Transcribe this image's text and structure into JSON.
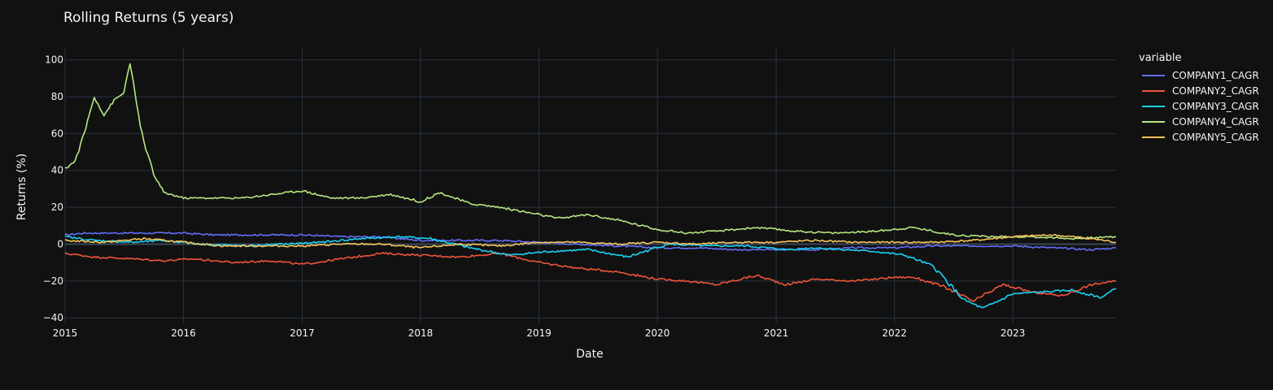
{
  "chart_data": {
    "type": "line",
    "title": "Rolling Returns (5 years)",
    "xlabel": "Date",
    "ylabel": "Returns (%)",
    "legend_title": "variable",
    "legend_position": "right",
    "grid": true,
    "xlim": [
      "2015-01-01",
      "2023-11-15"
    ],
    "ylim": [
      -43,
      106
    ],
    "x_ticks": [
      "2015",
      "2016",
      "2017",
      "2018",
      "2019",
      "2020",
      "2021",
      "2022",
      "2023"
    ],
    "y_ticks": [
      -40,
      -20,
      0,
      20,
      40,
      60,
      80,
      100
    ],
    "series": [
      {
        "name": "COMPANY1_CAGR",
        "color": "#636efa",
        "x": [
          "2015-01-01",
          "2015-03-01",
          "2015-06-01",
          "2015-09-01",
          "2016-01-01",
          "2016-04-01",
          "2016-07-01",
          "2016-10-01",
          "2017-01-01",
          "2017-05-01",
          "2017-09-01",
          "2018-01-01",
          "2018-05-01",
          "2018-09-01",
          "2019-01-01",
          "2019-05-01",
          "2019-09-01",
          "2020-01-01",
          "2020-05-01",
          "2020-09-01",
          "2021-01-01",
          "2021-05-01",
          "2021-09-01",
          "2022-01-01",
          "2022-05-01",
          "2022-09-01",
          "2023-01-01",
          "2023-05-01",
          "2023-09-01",
          "2023-11-15"
        ],
        "y": [
          5,
          6,
          6,
          6,
          6,
          5,
          5,
          5,
          5,
          4,
          4,
          2,
          2,
          2,
          1,
          0,
          -1,
          -2,
          -2,
          -3,
          -3,
          -3,
          -2,
          -2,
          -1,
          -1,
          -1,
          -2,
          -3,
          -2
        ]
      },
      {
        "name": "COMPANY2_CAGR",
        "color": "#ef553b",
        "x": [
          "2015-01-01",
          "2015-04-01",
          "2015-08-01",
          "2015-11-01",
          "2016-02-01",
          "2016-06-01",
          "2016-10-01",
          "2017-01-01",
          "2017-05-01",
          "2017-09-01",
          "2018-01-01",
          "2018-05-01",
          "2018-09-01",
          "2019-01-01",
          "2019-05-01",
          "2019-09-01",
          "2020-01-01",
          "2020-04-01",
          "2020-07-01",
          "2020-11-01",
          "2021-02-01",
          "2021-05-01",
          "2021-09-01",
          "2022-01-01",
          "2022-03-01",
          "2022-06-01",
          "2022-09-01",
          "2022-12-01",
          "2023-03-01",
          "2023-06-01",
          "2023-09-01",
          "2023-11-15"
        ],
        "y": [
          -5,
          -7,
          -8,
          -9,
          -8,
          -10,
          -9,
          -11,
          -8,
          -5,
          -6,
          -7,
          -5,
          -10,
          -13,
          -15,
          -19,
          -20,
          -22,
          -17,
          -22,
          -19,
          -20,
          -18,
          -18,
          -23,
          -31,
          -22,
          -26,
          -28,
          -22,
          -20
        ]
      },
      {
        "name": "COMPANY3_CAGR",
        "color": "#00cc96",
        "displayColor": "#19d3f3",
        "x": [
          "2015-01-01",
          "2015-04-01",
          "2015-08-01",
          "2015-11-01",
          "2016-03-01",
          "2016-07-01",
          "2016-11-01",
          "2017-03-01",
          "2017-07-01",
          "2017-11-01",
          "2018-02-01",
          "2018-06-01",
          "2018-10-01",
          "2019-02-01",
          "2019-06-01",
          "2019-10-01",
          "2020-02-01",
          "2020-06-01",
          "2020-10-01",
          "2021-02-01",
          "2021-05-01",
          "2021-08-01",
          "2021-11-01",
          "2022-02-01",
          "2022-05-01",
          "2022-08-01",
          "2022-10-01",
          "2023-01-01",
          "2023-04-01",
          "2023-07-01",
          "2023-10-01",
          "2023-11-15"
        ],
        "y": [
          4,
          2,
          1,
          2,
          0,
          -1,
          0,
          1,
          3,
          4,
          3,
          -2,
          -6,
          -4,
          -3,
          -7,
          0,
          -1,
          -1,
          -3,
          -2,
          -3,
          -4,
          -6,
          -12,
          -30,
          -35,
          -27,
          -26,
          -25,
          -29,
          -24
        ]
      },
      {
        "name": "COMPANY4_CAGR",
        "color": "#b6e880",
        "x": [
          "2015-01-01",
          "2015-02-01",
          "2015-03-01",
          "2015-04-01",
          "2015-05-01",
          "2015-06-01",
          "2015-07-01",
          "2015-07-20",
          "2015-08-10",
          "2015-09-01",
          "2015-10-01",
          "2015-11-01",
          "2016-01-01",
          "2016-04-01",
          "2016-07-01",
          "2016-10-01",
          "2017-01-01",
          "2017-04-01",
          "2017-07-01",
          "2017-10-01",
          "2018-01-01",
          "2018-03-01",
          "2018-06-01",
          "2018-09-01",
          "2019-01-01",
          "2019-03-01",
          "2019-06-01",
          "2019-09-01",
          "2020-01-01",
          "2020-04-01",
          "2020-07-01",
          "2020-11-01",
          "2021-03-01",
          "2021-07-01",
          "2021-11-01",
          "2022-03-01",
          "2022-07-01",
          "2022-11-01",
          "2023-03-01",
          "2023-07-01",
          "2023-11-15"
        ],
        "y": [
          41,
          45,
          60,
          80,
          70,
          78,
          82,
          99,
          75,
          55,
          38,
          28,
          25,
          25,
          25,
          27,
          29,
          25,
          25,
          27,
          23,
          28,
          22,
          20,
          16,
          14,
          16,
          13,
          8,
          6,
          7,
          9,
          7,
          6,
          7,
          9,
          5,
          4,
          4,
          3,
          4
        ]
      },
      {
        "name": "COMPANY5_CAGR",
        "color": "#fecb52",
        "displayColor": "#f6c55b",
        "x": [
          "2015-01-01",
          "2015-05-01",
          "2015-09-01",
          "2016-01-01",
          "2016-05-01",
          "2016-09-01",
          "2017-01-01",
          "2017-05-01",
          "2017-09-01",
          "2018-01-01",
          "2018-05-01",
          "2018-09-01",
          "2019-01-01",
          "2019-05-01",
          "2019-09-01",
          "2020-01-01",
          "2020-05-01",
          "2020-09-01",
          "2021-01-01",
          "2021-05-01",
          "2021-09-01",
          "2022-01-01",
          "2022-05-01",
          "2022-09-01",
          "2023-01-01",
          "2023-05-01",
          "2023-09-01",
          "2023-11-15"
        ],
        "y": [
          2,
          1,
          3,
          1,
          -1,
          -1,
          -1,
          0,
          0,
          -2,
          0,
          -1,
          1,
          1,
          0,
          1,
          0,
          1,
          1,
          2,
          1,
          1,
          1,
          2,
          4,
          5,
          3,
          1
        ]
      }
    ]
  }
}
